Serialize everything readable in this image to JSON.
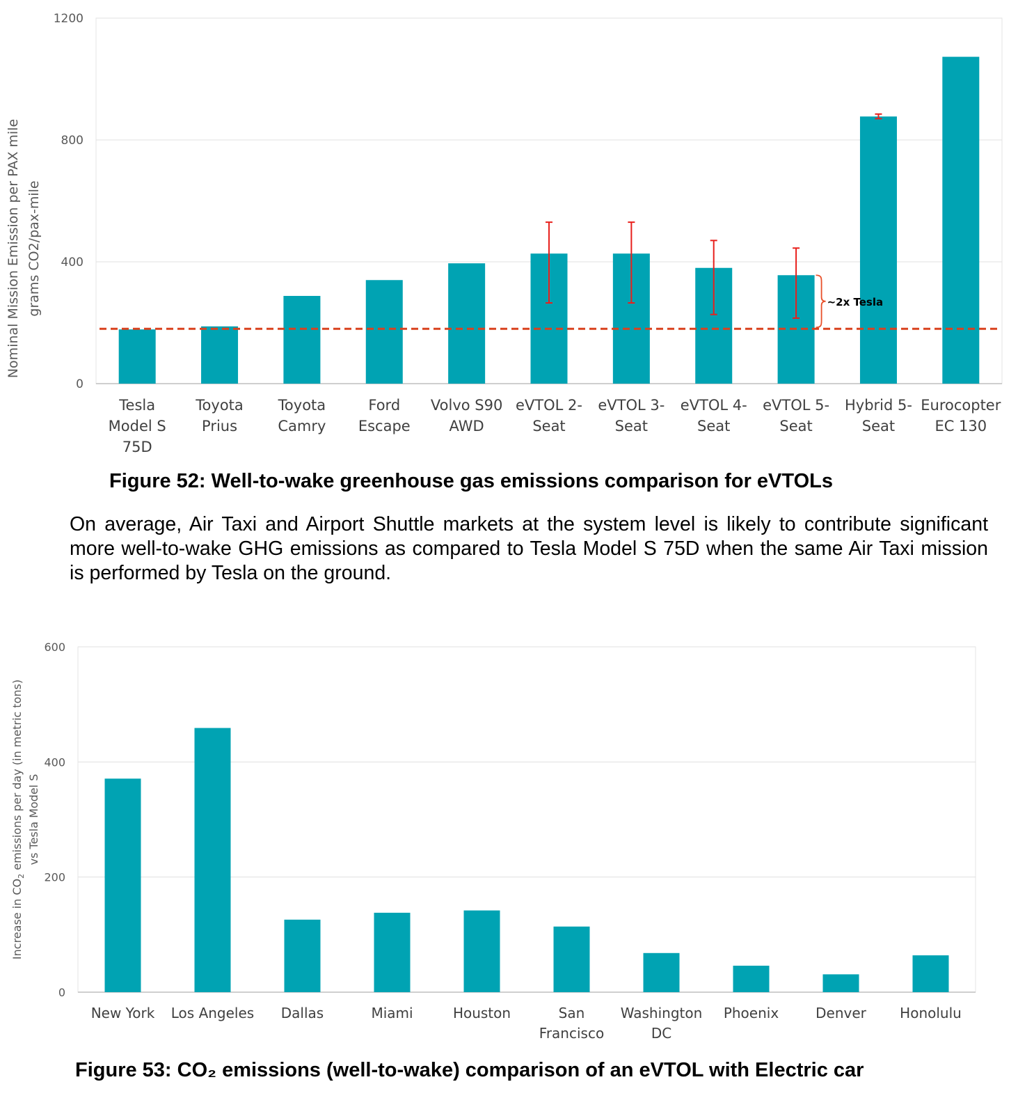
{
  "chart_data": [
    {
      "type": "bar",
      "ylabel_line1": "Nominal Mission Emission per PAX mile",
      "ylabel_line2": "grams CO2/pax-mile",
      "ylim": [
        0,
        1200
      ],
      "yticks": [
        0,
        400,
        800,
        1200
      ],
      "grid": true,
      "color": "#00A3B3",
      "categories": [
        [
          "Tesla",
          "Model S",
          "75D"
        ],
        [
          "Toyota",
          "Prius"
        ],
        [
          "Toyota",
          "Camry"
        ],
        [
          "Ford",
          "Escape"
        ],
        [
          "Volvo S90",
          "AWD"
        ],
        [
          "eVTOL 2-",
          "Seat"
        ],
        [
          "eVTOL 3-",
          "Seat"
        ],
        [
          "eVTOL 4-",
          "Seat"
        ],
        [
          "eVTOL 5-",
          "Seat"
        ],
        [
          "Hybrid 5-",
          "Seat"
        ],
        [
          "Eurocopter",
          "EC 130"
        ]
      ],
      "values": [
        178,
        188,
        288,
        340,
        395,
        427,
        427,
        380,
        356,
        877,
        1073
      ],
      "error_bars": [
        null,
        null,
        null,
        null,
        null,
        [
          265,
          530
        ],
        [
          265,
          530
        ],
        [
          227,
          470
        ],
        [
          215,
          445
        ],
        [
          870,
          885
        ],
        null
      ],
      "reference_line": {
        "value": 180,
        "color": "#D9421F",
        "style": "dashed"
      },
      "annotation": "~2x Tesla"
    },
    {
      "type": "bar",
      "ylabel_line1_prefix": "Increase in CO",
      "ylabel_line1_sub": "2",
      "ylabel_line1_suffix": " emissions per day (in metric tons)",
      "ylabel_line2": "vs Tesla Model S",
      "ylim": [
        0,
        600
      ],
      "yticks": [
        0,
        200,
        400,
        600
      ],
      "grid": true,
      "color": "#00A3B3",
      "categories": [
        [
          "New York"
        ],
        [
          "Los Angeles"
        ],
        [
          "Dallas"
        ],
        [
          "Miami"
        ],
        [
          "Houston"
        ],
        [
          "San",
          "Francisco"
        ],
        [
          "Washington",
          "DC"
        ],
        [
          "Phoenix"
        ],
        [
          "Denver"
        ],
        [
          "Honolulu"
        ]
      ],
      "values": [
        371,
        459,
        126,
        138,
        142,
        114,
        68,
        46,
        31,
        64
      ]
    }
  ],
  "captions": {
    "figure52": "Figure 52: Well-to-wake greenhouse gas emissions comparison for eVTOLs",
    "figure53": "Figure 53: CO₂ emissions (well-to-wake) comparison of an eVTOL with Electric car"
  },
  "paragraph": "On average, Air Taxi and Airport Shuttle markets at the system level is likely to contribute significant more well-to-wake GHG emissions as compared to Tesla Model S 75D when the same Air Taxi mission is performed by Tesla on the ground."
}
